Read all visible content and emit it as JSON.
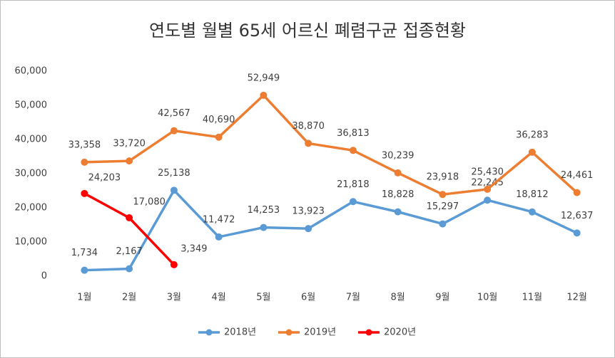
{
  "chart_data": {
    "type": "line",
    "title": "연도별 월별 65세 어르신 폐렴구균 접종현황",
    "categories": [
      "1월",
      "2월",
      "3월",
      "4월",
      "5월",
      "6월",
      "7월",
      "8월",
      "9월",
      "10월",
      "11월",
      "12월"
    ],
    "series": [
      {
        "name": "2018년",
        "color": "#5b9bd5",
        "values": [
          1734,
          2167,
          25138,
          11472,
          14253,
          13923,
          21818,
          18828,
          15297,
          22245,
          18812,
          12637
        ],
        "value_labels": [
          "1,734",
          "2,167",
          "25,138",
          "11,472",
          "14,253",
          "13,923",
          "21,818",
          "18,828",
          "15,297",
          "22,245",
          "18,812",
          "12,637"
        ]
      },
      {
        "name": "2019년",
        "color": "#ed7d31",
        "values": [
          33358,
          33720,
          42567,
          40690,
          52949,
          38870,
          36813,
          30239,
          23918,
          25430,
          36283,
          24461
        ],
        "value_labels": [
          "33,358",
          "33,720",
          "42,567",
          "40,690",
          "52,949",
          "38,870",
          "36,813",
          "30,239",
          "23,918",
          "25,430",
          "36,283",
          "24,461"
        ]
      },
      {
        "name": "2020년",
        "color": "#ff0000",
        "values": [
          24203,
          17080,
          3349,
          null,
          null,
          null,
          null,
          null,
          null,
          null,
          null,
          null
        ],
        "value_labels": [
          "24,203",
          "17,080",
          "3,349",
          null,
          null,
          null,
          null,
          null,
          null,
          null,
          null,
          null
        ]
      }
    ],
    "ylim": [
      0,
      60000
    ],
    "yticks": [
      {
        "value": 0,
        "label": "0"
      },
      {
        "value": 10000,
        "label": "10,000"
      },
      {
        "value": 20000,
        "label": "20,000"
      },
      {
        "value": 30000,
        "label": "30,000"
      },
      {
        "value": 40000,
        "label": "40,000"
      },
      {
        "value": 50000,
        "label": "50,000"
      },
      {
        "value": 60000,
        "label": "60,000"
      }
    ],
    "grid": false,
    "legend": "bottom"
  }
}
